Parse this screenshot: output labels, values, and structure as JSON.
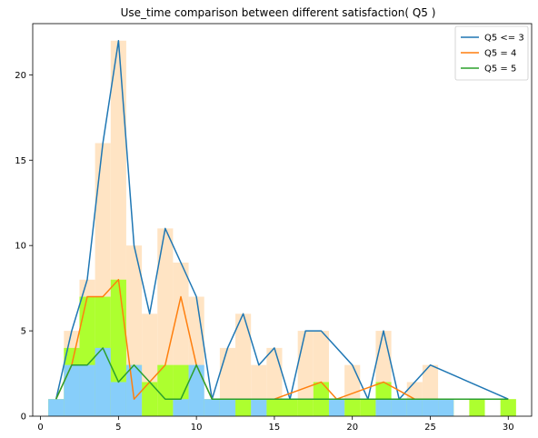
{
  "chart_data": {
    "type": "line",
    "title": "Use_time comparison between different satisfaction( Q5 )",
    "xlabel": "",
    "ylabel": "",
    "xlim": [
      -0.5,
      31.5
    ],
    "ylim": [
      0,
      23
    ],
    "xticks": [
      0,
      5,
      10,
      15,
      20,
      25,
      30
    ],
    "yticks": [
      0,
      5,
      10,
      15,
      20
    ],
    "grid": false,
    "legend_position": "top-right",
    "histograms": [
      {
        "name": "Q5 <= 3 histogram",
        "color": "#ffe4c4",
        "bar_width": 1,
        "x": [
          1,
          2,
          3,
          4,
          5,
          6,
          7,
          8,
          9,
          10,
          11,
          12,
          13,
          14,
          15,
          16,
          17,
          18,
          19,
          20,
          21,
          22,
          23,
          24,
          25,
          26,
          27,
          28,
          29,
          30
        ],
        "values": [
          1,
          5,
          8,
          16,
          22,
          10,
          6,
          11,
          9,
          7,
          1,
          4,
          6,
          3,
          4,
          1,
          5,
          5,
          1,
          3,
          1,
          5,
          1,
          2,
          3,
          1,
          0,
          0,
          0,
          1
        ]
      },
      {
        "name": "Q5 = 5 histogram",
        "color": "#adff2f",
        "bar_width": 1,
        "x": [
          1,
          2,
          3,
          4,
          5,
          6,
          7,
          8,
          9,
          10,
          11,
          12,
          13,
          14,
          15,
          16,
          17,
          18,
          19,
          20,
          21,
          22,
          23,
          24,
          25,
          26,
          27,
          28,
          29,
          30
        ],
        "values": [
          1,
          4,
          7,
          7,
          8,
          3,
          2,
          3,
          3,
          1,
          1,
          1,
          1,
          1,
          1,
          1,
          1,
          2,
          1,
          1,
          1,
          2,
          1,
          1,
          1,
          1,
          0,
          1,
          0,
          1
        ]
      },
      {
        "name": "Q5 = 4 histogram",
        "color": "#87cefa",
        "bar_width": 1,
        "x": [
          1,
          2,
          3,
          4,
          5,
          6,
          7,
          8,
          9,
          10,
          11,
          12,
          13,
          14,
          15,
          16,
          17,
          18,
          19,
          20,
          21,
          22,
          23,
          24,
          25,
          26,
          27,
          28,
          29,
          30
        ],
        "values": [
          1,
          3,
          3,
          4,
          2,
          3,
          0,
          0,
          1,
          3,
          1,
          1,
          0,
          1,
          0,
          0,
          0,
          0,
          1,
          0,
          0,
          1,
          1,
          1,
          1,
          1,
          0,
          0,
          0,
          0
        ]
      }
    ],
    "series": [
      {
        "name": "Q5 <= 3",
        "color": "#1f77b4",
        "x": [
          1,
          2,
          3,
          4,
          5,
          6,
          7,
          8,
          9,
          10,
          11,
          12,
          13,
          14,
          15,
          16,
          17,
          18,
          20,
          21,
          22,
          23,
          25,
          30
        ],
        "y": [
          1,
          5,
          8,
          16,
          22,
          10,
          6,
          11,
          9,
          7,
          1,
          4,
          6,
          3,
          4,
          1,
          5,
          5,
          3,
          1,
          5,
          1,
          3,
          1
        ]
      },
      {
        "name": "Q5 = 4",
        "color": "#ff7f0e",
        "x": [
          1,
          2,
          3,
          4,
          5,
          6,
          7,
          8,
          9,
          10,
          11,
          12,
          13,
          15,
          18,
          19,
          22,
          24,
          30
        ],
        "y": [
          1,
          3,
          7,
          7,
          8,
          1,
          2,
          3,
          7,
          3,
          1,
          1,
          1,
          1,
          2,
          1,
          2,
          1,
          1
        ]
      },
      {
        "name": "Q5 = 5",
        "color": "#2ca02c",
        "x": [
          1,
          2,
          3,
          4,
          5,
          6,
          7,
          8,
          9,
          10,
          11,
          13,
          14,
          15,
          17,
          18,
          20,
          22,
          23,
          26,
          28,
          30
        ],
        "y": [
          1,
          3,
          3,
          4,
          2,
          3,
          2,
          1,
          1,
          3,
          1,
          1,
          1,
          1,
          1,
          1,
          1,
          1,
          1,
          1,
          1,
          1
        ]
      }
    ],
    "legend": [
      "Q5 <= 3",
      "Q5 = 4",
      "Q5 = 5"
    ]
  }
}
